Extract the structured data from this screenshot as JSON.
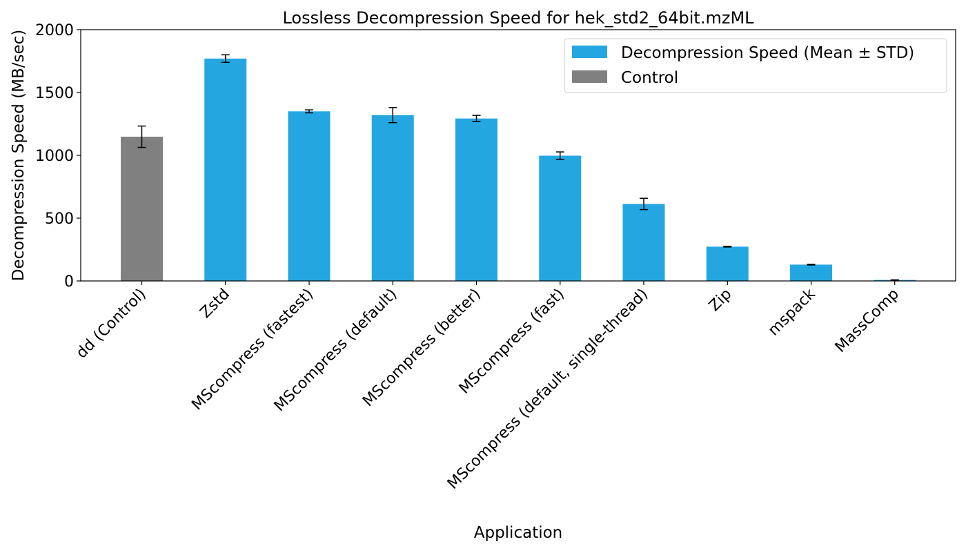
{
  "chart_data": {
    "type": "bar",
    "title": "Lossless Decompression Speed for hek_std2_64bit.mzML",
    "xlabel": "Application",
    "ylabel": "Decompression Speed (MB/sec)",
    "ylim": [
      0,
      2000
    ],
    "yticks": [
      0,
      500,
      1000,
      1500,
      2000
    ],
    "grid": false,
    "legend_position": "top-right",
    "categories": [
      "dd (Control)",
      "Zstd",
      "MScompress (fastest)",
      "MScompress (default)",
      "MScompress (better)",
      "MScompress (fast)",
      "MScompress (default, single-thread)",
      "Zip",
      "mspack",
      "MassComp"
    ],
    "series": [
      {
        "name": "Decompression Speed (Mean ± STD)",
        "color": "#24a7e0",
        "values": [
          null,
          1770,
          1350,
          1320,
          1293,
          997,
          613,
          273,
          130,
          8
        ],
        "errors": [
          null,
          30,
          12,
          60,
          25,
          30,
          45,
          3,
          3,
          1
        ]
      },
      {
        "name": "Control",
        "color": "#808080",
        "values": [
          1148,
          null,
          null,
          null,
          null,
          null,
          null,
          null,
          null,
          null
        ],
        "errors": [
          85,
          null,
          null,
          null,
          null,
          null,
          null,
          null,
          null,
          null
        ]
      }
    ]
  }
}
